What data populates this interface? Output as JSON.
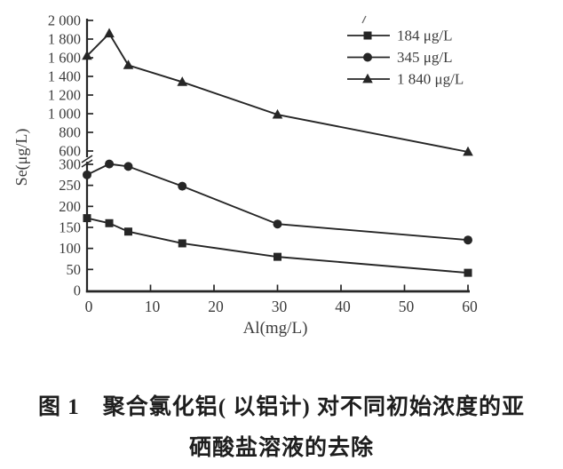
{
  "figure": {
    "caption_line1": "图 1　聚合氯化铝( 以铝计) 对不同初始浓度的亚",
    "caption_line2": "硒酸盐溶液的去除"
  },
  "chart_data": {
    "type": "line",
    "title": "",
    "xlabel": "Al(mg/L)",
    "ylabel": "Se(μg/L)",
    "x": [
      0,
      3.5,
      6.5,
      15,
      30,
      60
    ],
    "series": [
      {
        "name": "184 μg/L",
        "marker": "square",
        "values": [
          172,
          160,
          140,
          112,
          80,
          42
        ]
      },
      {
        "name": "345 μg/L",
        "marker": "circle",
        "values": [
          275,
          308,
          295,
          248,
          158,
          120
        ]
      },
      {
        "name": "1 840 μg/L",
        "marker": "triangle",
        "values": [
          1620,
          1860,
          1520,
          1340,
          990,
          580
        ]
      }
    ],
    "x_ticks": [
      {
        "v": 0,
        "label": "0"
      },
      {
        "v": 10,
        "label": "10"
      },
      {
        "v": 20,
        "label": "20"
      },
      {
        "v": 30,
        "label": "30"
      },
      {
        "v": 40,
        "label": "40"
      },
      {
        "v": 50,
        "label": "50"
      },
      {
        "v": 60,
        "label": "60"
      }
    ],
    "y_ticks": [
      {
        "v": 0,
        "label": "0"
      },
      {
        "v": 50,
        "label": "50"
      },
      {
        "v": 100,
        "label": "100"
      },
      {
        "v": 150,
        "label": "150"
      },
      {
        "v": 200,
        "label": "200"
      },
      {
        "v": 250,
        "label": "250"
      },
      {
        "v": 300,
        "label": "300"
      },
      {
        "v": 600,
        "label": "600"
      },
      {
        "v": 800,
        "label": "800"
      },
      {
        "v": 1000,
        "label": "1 000"
      },
      {
        "v": 1200,
        "label": "1 200"
      },
      {
        "v": 1400,
        "label": "1 400"
      },
      {
        "v": 1600,
        "label": "1 600"
      },
      {
        "v": 1800,
        "label": "1 800"
      },
      {
        "v": 2000,
        "label": "2 000"
      }
    ],
    "y_axis": {
      "lower_range": [
        0,
        300
      ],
      "upper_range": [
        600,
        2000
      ],
      "break_between": [
        300,
        600
      ]
    },
    "xlim": [
      0,
      60
    ],
    "grid": false,
    "legend_position": "top-right",
    "colors": {
      "ink": "#262626",
      "text": "#3c3c3c"
    }
  }
}
